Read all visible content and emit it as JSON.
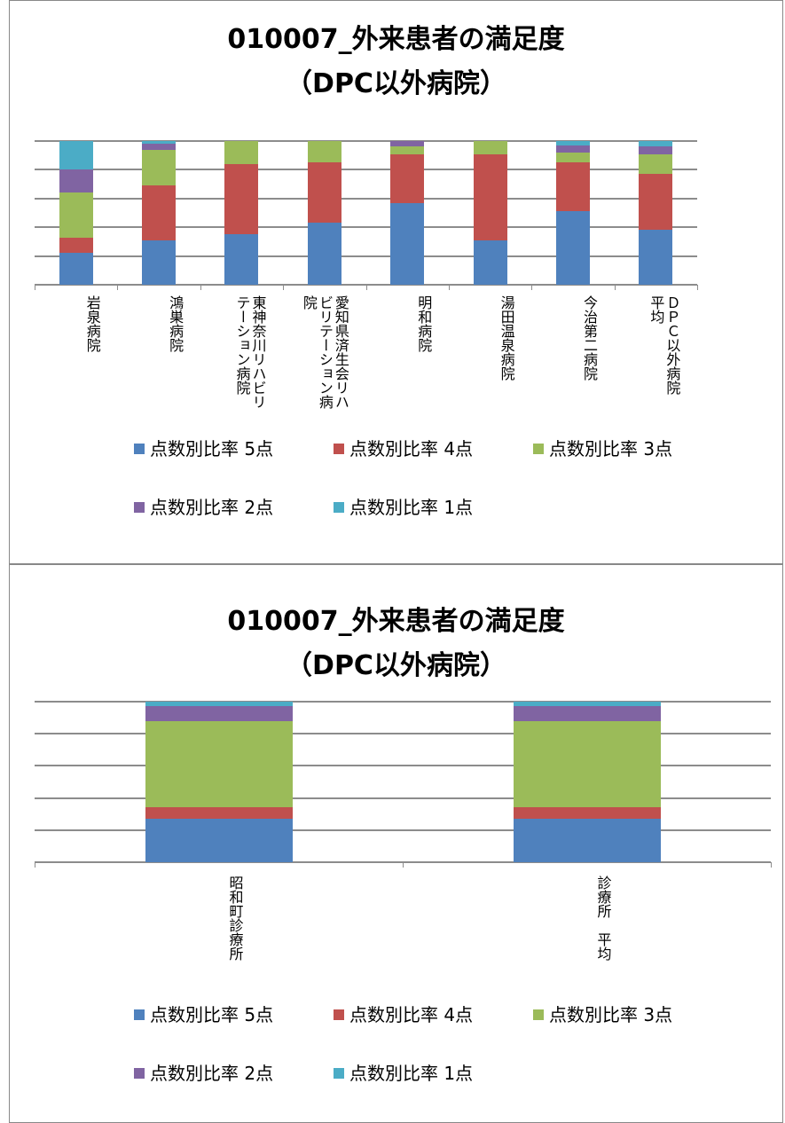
{
  "chart_data": [
    {
      "type": "stacked_bar",
      "title": "010007_外来患者の満足度",
      "subtitle": "（DPC以外病院）",
      "categories": [
        "岩泉病院",
        "鴻巣病院",
        "東神奈川リハビリテーション病院",
        "愛知県済生会リハビリテーション病院",
        "明和病院",
        "湯田温泉病院",
        "今治第二病院",
        "ＤＰＣ以外病院　平均"
      ],
      "series": [
        {
          "name": "点数別比率 5点",
          "color": "#4f81bd",
          "values": [
            22,
            31,
            35,
            43,
            57,
            31,
            51,
            38
          ]
        },
        {
          "name": "点数別比率 4点",
          "color": "#c0504d",
          "values": [
            11,
            38,
            49,
            42,
            34,
            60,
            34,
            39
          ]
        },
        {
          "name": "点数別比率 3点",
          "color": "#9bbb59",
          "values": [
            31,
            25,
            16,
            15,
            5,
            9,
            7,
            14
          ]
        },
        {
          "name": "点数別比率 2点",
          "color": "#8064a2",
          "values": [
            16,
            4,
            0,
            0,
            4,
            0,
            5,
            5
          ]
        },
        {
          "name": "点数別比率 1点",
          "color": "#4bacc6",
          "values": [
            20,
            2,
            0,
            0,
            0,
            0,
            3,
            4
          ]
        }
      ],
      "ylim": [
        0,
        100
      ],
      "yticks": [
        0,
        20,
        40,
        60,
        80,
        100
      ],
      "grid": true,
      "legend": "bottom"
    },
    {
      "type": "stacked_bar",
      "title": "010007_外来患者の満足度",
      "subtitle": "（DPC以外病院）",
      "categories": [
        "昭和町診療所",
        "診療所　平均"
      ],
      "series": [
        {
          "name": "点数別比率 5点",
          "color": "#4f81bd",
          "values": [
            27,
            27
          ]
        },
        {
          "name": "点数別比率 4点",
          "color": "#c0504d",
          "values": [
            7,
            7
          ]
        },
        {
          "name": "点数別比率 3点",
          "color": "#9bbb59",
          "values": [
            54,
            54
          ]
        },
        {
          "name": "点数別比率 2点",
          "color": "#8064a2",
          "values": [
            9,
            9
          ]
        },
        {
          "name": "点数別比率 1点",
          "color": "#4bacc6",
          "values": [
            3,
            3
          ]
        }
      ],
      "ylim": [
        0,
        100
      ],
      "yticks": [
        0,
        20,
        40,
        60,
        80,
        100
      ],
      "grid": true,
      "legend": "bottom"
    }
  ]
}
